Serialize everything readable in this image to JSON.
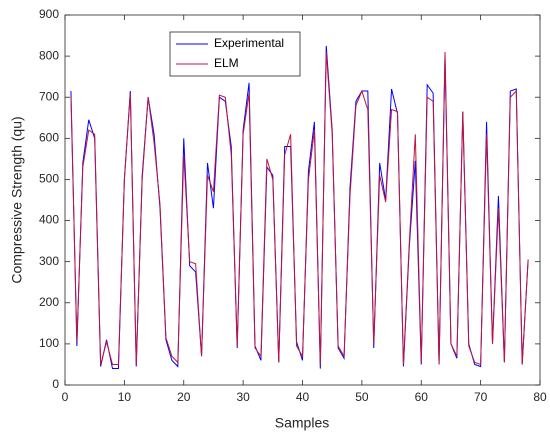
{
  "chart_data": {
    "type": "line",
    "xlabel": "Samples",
    "ylabel": "Compressive Strength (qu)",
    "x": [
      1,
      2,
      3,
      4,
      5,
      6,
      7,
      8,
      9,
      10,
      11,
      12,
      13,
      14,
      15,
      16,
      17,
      18,
      19,
      20,
      21,
      22,
      23,
      24,
      25,
      26,
      27,
      28,
      29,
      30,
      31,
      32,
      33,
      34,
      35,
      36,
      37,
      38,
      39,
      40,
      41,
      42,
      43,
      44,
      45,
      46,
      47,
      48,
      49,
      50,
      51,
      52,
      53,
      54,
      55,
      56,
      57,
      58,
      59,
      60,
      61,
      62,
      63,
      64,
      65,
      66,
      67,
      68,
      69,
      70,
      71,
      72,
      73,
      74,
      75,
      76,
      77,
      78
    ],
    "series": [
      {
        "name": "Experimental",
        "color": "#0000ff",
        "values": [
          715,
          95,
          540,
          645,
          600,
          45,
          110,
          40,
          40,
          500,
          715,
          45,
          510,
          700,
          610,
          430,
          110,
          60,
          45,
          600,
          290,
          275,
          70,
          540,
          430,
          700,
          690,
          580,
          90,
          620,
          735,
          95,
          60,
          530,
          510,
          55,
          580,
          580,
          105,
          60,
          520,
          640,
          40,
          825,
          620,
          90,
          65,
          480,
          690,
          715,
          715,
          90,
          540,
          450,
          720,
          660,
          45,
          340,
          545,
          50,
          730,
          710,
          50,
          800,
          100,
          65,
          665,
          100,
          50,
          45,
          640,
          100,
          460,
          55,
          715,
          720,
          50,
          305
        ]
      },
      {
        "name": "ELM",
        "color": "#c0143c",
        "values": [
          700,
          105,
          530,
          620,
          610,
          50,
          105,
          50,
          50,
          500,
          710,
          50,
          500,
          700,
          590,
          440,
          115,
          70,
          55,
          560,
          300,
          295,
          70,
          510,
          470,
          705,
          700,
          560,
          95,
          610,
          710,
          90,
          70,
          550,
          500,
          55,
          560,
          610,
          95,
          70,
          500,
          620,
          50,
          810,
          610,
          95,
          70,
          460,
          680,
          715,
          670,
          100,
          510,
          445,
          670,
          665,
          50,
          350,
          610,
          55,
          700,
          690,
          50,
          810,
          100,
          70,
          665,
          95,
          55,
          50,
          610,
          100,
          430,
          55,
          700,
          715,
          50,
          305
        ]
      }
    ],
    "xlim": [
      0,
      80
    ],
    "xticks": [
      0,
      10,
      20,
      30,
      40,
      50,
      60,
      70,
      80
    ],
    "ylim": [
      0,
      900
    ],
    "yticks": [
      0,
      100,
      200,
      300,
      400,
      500,
      600,
      700,
      800,
      900
    ],
    "legend": "upper left"
  }
}
